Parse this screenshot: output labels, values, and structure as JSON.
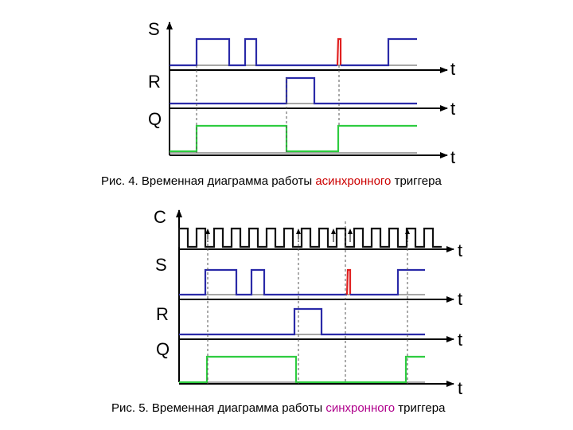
{
  "colors": {
    "signal_blue": "#2a2aa8",
    "signal_red": "#e02020",
    "signal_green": "#2ecc40",
    "accent_async": "#cc0000",
    "accent_sync": "#b0008c"
  },
  "figure4": {
    "axis_labels": {
      "s": "S",
      "r": "R",
      "q": "Q"
    },
    "time_label": "t",
    "caption": {
      "prefix": "Рис. 4. Временная диаграмма работы ",
      "highlight": "асинхронного",
      "suffix": " триггера"
    }
  },
  "figure5": {
    "axis_labels": {
      "c": "C",
      "s": "S",
      "r": "R",
      "q": "Q"
    },
    "time_label": "t",
    "caption": {
      "prefix": "Рис. 5. Временная диаграмма работы ",
      "highlight": "синхронного",
      "suffix": " триггера"
    }
  }
}
